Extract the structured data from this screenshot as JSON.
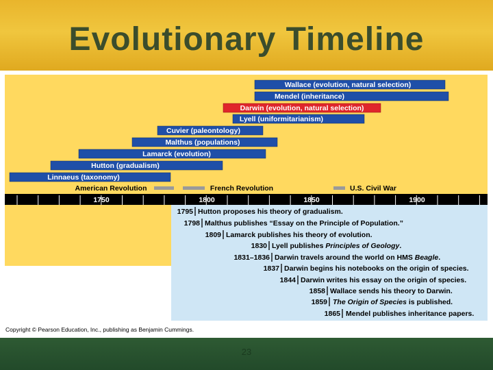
{
  "slide": {
    "title": "Evolutionary Timeline",
    "page_number": "23",
    "copyright": "Copyright © Pearson Education, Inc., publishing as Benjamin Cummings."
  },
  "colors": {
    "background_gold": "#e3ac22",
    "title_green": "#3b4d2c",
    "panel_yellow": "#ffd95f",
    "panel_blue": "#cfe6f5",
    "bar_blue": "#1f4fa8",
    "bar_red": "#e0262b",
    "bar_gray": "#9a9a9a"
  },
  "scientist_bars": [
    {
      "label": "Wallace (evolution, natural selection)",
      "highlight": false
    },
    {
      "label": "Mendel (inheritance)",
      "highlight": false
    },
    {
      "label": "Darwin (evolution, natural selection)",
      "highlight": true
    },
    {
      "label": "Lyell (uniformitarianism)",
      "highlight": false
    },
    {
      "label": "Cuvier (paleontology)",
      "highlight": false
    },
    {
      "label": "Malthus (populations)",
      "highlight": false
    },
    {
      "label": "Lamarck (evolution)",
      "highlight": false
    },
    {
      "label": "Hutton (gradualism)",
      "highlight": false
    },
    {
      "label": "Linnaeus (taxonomy)",
      "highlight": false
    }
  ],
  "history_events": [
    {
      "label": "American Revolution"
    },
    {
      "label": "French Revolution"
    },
    {
      "label": "U.S. Civil War"
    }
  ],
  "axis_years": [
    "1750",
    "1800",
    "1850",
    "1900"
  ],
  "milestones": [
    {
      "year": "1795",
      "text": "Hutton proposes his theory of gradualism."
    },
    {
      "year": "1798",
      "text": "Malthus publishes “Essay on the Principle of Population.”"
    },
    {
      "year": "1809",
      "text": "Lamarck publishes his theory of evolution."
    },
    {
      "year": "1830",
      "text_before": "Lyell publishes ",
      "text_italic": "Principles of Geology",
      "text_after": "."
    },
    {
      "year": "1831–1836",
      "text_before": "Darwin travels around the world on HMS ",
      "text_italic": "Beagle",
      "text_after": "."
    },
    {
      "year": "1837",
      "text": "Darwin begins his notebooks on the origin of species."
    },
    {
      "year": "1844",
      "text": "Darwin writes his essay on the origin of species."
    },
    {
      "year": "1858",
      "text": "Wallace sends his theory to Darwin."
    },
    {
      "year": "1859",
      "text_before": "",
      "text_italic": "The Origin of Species",
      "text_after": " is published."
    },
    {
      "year": "1865",
      "text": "Mendel publishes inheritance papers."
    }
  ]
}
